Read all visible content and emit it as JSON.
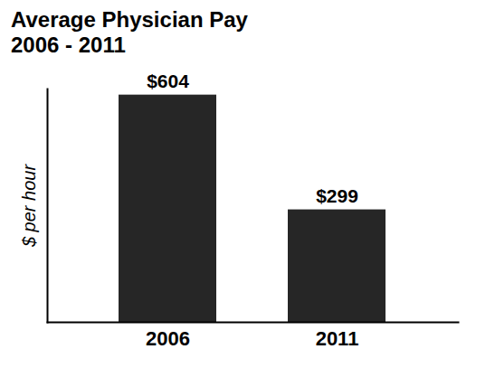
{
  "chart_data": {
    "type": "bar",
    "title": "Average Physician Pay 2006 - 2011",
    "y_label": "$ per hour",
    "categories": [
      "2006",
      "2011"
    ],
    "values": [
      604,
      299
    ],
    "value_labels": [
      "$604",
      "$299"
    ],
    "data_labels": true,
    "color": "#262626",
    "ylim": [
      0,
      620
    ],
    "yticks": [],
    "tick_labels": "x",
    "grid": false
  }
}
